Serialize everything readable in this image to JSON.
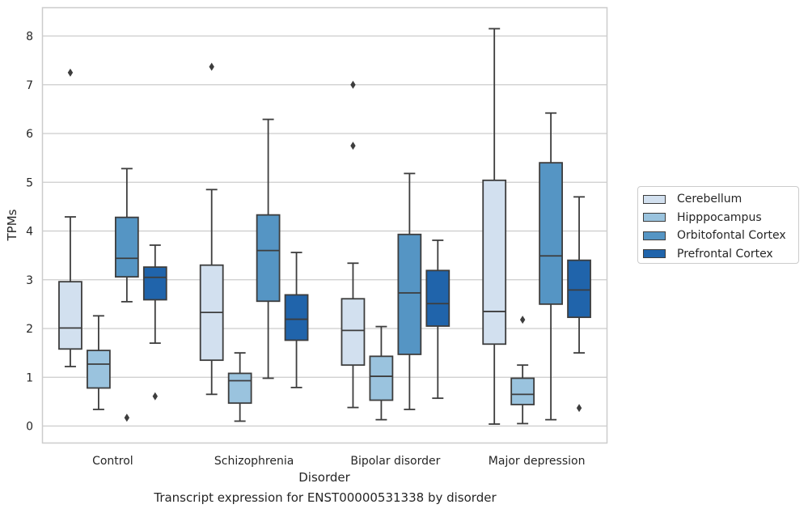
{
  "chart_data": {
    "type": "box",
    "caption": "Transcript expression for ENST00000531338 by disorder",
    "xlabel": "Disorder",
    "ylabel": "TPMs",
    "ylim": [
      -0.35,
      8.55
    ],
    "yticks": [
      0,
      1,
      2,
      3,
      4,
      5,
      6,
      7,
      8
    ],
    "grid": "horizontal",
    "legend_position": "right",
    "categories": [
      "Control",
      "Schizophrenia",
      "Bipolar disorder",
      "Major depression"
    ],
    "series": [
      {
        "name": "Cerebellum",
        "color": "#d2e0ef",
        "boxes": [
          {
            "whisker_low": 1.22,
            "q1": 1.58,
            "median": 2.01,
            "q3": 2.96,
            "whisker_high": 4.29,
            "outliers": [
              7.25
            ]
          },
          {
            "whisker_low": 0.65,
            "q1": 1.35,
            "median": 2.33,
            "q3": 3.3,
            "whisker_high": 4.85,
            "outliers": [
              7.37
            ]
          },
          {
            "whisker_low": 0.38,
            "q1": 1.25,
            "median": 1.96,
            "q3": 2.61,
            "whisker_high": 3.34,
            "outliers": [
              7.0,
              5.75
            ]
          },
          {
            "whisker_low": 0.04,
            "q1": 1.68,
            "median": 2.35,
            "q3": 5.04,
            "whisker_high": 8.15,
            "outliers": []
          }
        ]
      },
      {
        "name": "Hipppocampus",
        "color": "#9ac3de",
        "boxes": [
          {
            "whisker_low": 0.34,
            "q1": 0.78,
            "median": 1.27,
            "q3": 1.55,
            "whisker_high": 2.26,
            "outliers": []
          },
          {
            "whisker_low": 0.1,
            "q1": 0.47,
            "median": 0.93,
            "q3": 1.08,
            "whisker_high": 1.5,
            "outliers": []
          },
          {
            "whisker_low": 0.13,
            "q1": 0.53,
            "median": 1.02,
            "q3": 1.43,
            "whisker_high": 2.04,
            "outliers": []
          },
          {
            "whisker_low": 0.05,
            "q1": 0.44,
            "median": 0.65,
            "q3": 0.98,
            "whisker_high": 1.25,
            "outliers": [
              2.18
            ]
          }
        ]
      },
      {
        "name": "Orbitofontal Cortex",
        "color": "#5595c4",
        "boxes": [
          {
            "whisker_low": 2.55,
            "q1": 3.06,
            "median": 3.44,
            "q3": 4.28,
            "whisker_high": 5.28,
            "outliers": [
              0.17
            ]
          },
          {
            "whisker_low": 0.98,
            "q1": 2.56,
            "median": 3.6,
            "q3": 4.33,
            "whisker_high": 6.29,
            "outliers": []
          },
          {
            "whisker_low": 0.34,
            "q1": 1.47,
            "median": 2.73,
            "q3": 3.93,
            "whisker_high": 5.18,
            "outliers": []
          },
          {
            "whisker_low": 0.13,
            "q1": 2.5,
            "median": 3.49,
            "q3": 5.4,
            "whisker_high": 6.42,
            "outliers": []
          }
        ]
      },
      {
        "name": "Prefrontal Cortex",
        "color": "#2064ab",
        "boxes": [
          {
            "whisker_low": 1.7,
            "q1": 2.59,
            "median": 3.05,
            "q3": 3.26,
            "whisker_high": 3.71,
            "outliers": [
              0.61
            ]
          },
          {
            "whisker_low": 0.79,
            "q1": 1.76,
            "median": 2.19,
            "q3": 2.69,
            "whisker_high": 3.56,
            "outliers": []
          },
          {
            "whisker_low": 0.57,
            "q1": 2.05,
            "median": 2.51,
            "q3": 3.19,
            "whisker_high": 3.81,
            "outliers": []
          },
          {
            "whisker_low": 1.5,
            "q1": 2.23,
            "median": 2.79,
            "q3": 3.4,
            "whisker_high": 4.7,
            "outliers": [
              0.37
            ]
          }
        ]
      }
    ]
  }
}
